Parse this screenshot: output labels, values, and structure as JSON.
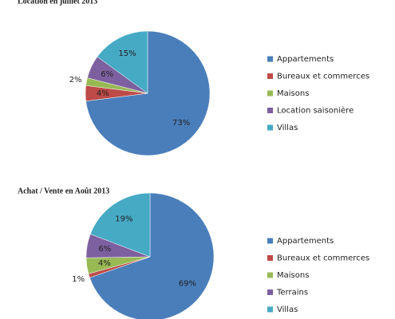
{
  "chart_data": [
    {
      "type": "pie",
      "title": "Location en juillet 2013",
      "categories": [
        "Appartements",
        "Bureaux et commerces",
        "Maisons",
        "Location saisonière",
        "Villas"
      ],
      "values": [
        73,
        4,
        2,
        6,
        15
      ],
      "value_labels": [
        "73%",
        "4%",
        "2%",
        "6%",
        "15%"
      ],
      "colors": [
        "#4a7ebb",
        "#be4b48",
        "#98b954",
        "#7d60a0",
        "#46aac5"
      ]
    },
    {
      "type": "pie",
      "title": "Achat / Vente en Août 2013",
      "categories": [
        "Appartements",
        "Bureaux et commerces",
        "Maisons",
        "Terrains",
        "Villas"
      ],
      "values": [
        69,
        1,
        4,
        6,
        19
      ],
      "value_labels": [
        "69%",
        "1%",
        "4%",
        "6%",
        "19%"
      ],
      "colors": [
        "#4a7ebb",
        "#be4b48",
        "#98b954",
        "#7d60a0",
        "#46aac5"
      ]
    }
  ]
}
